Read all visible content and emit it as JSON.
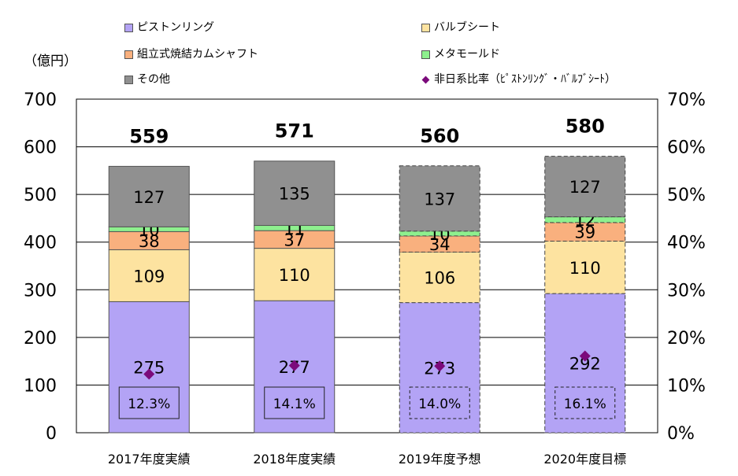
{
  "unit_label": "（億円）",
  "legend": [
    {
      "label": "ピストンリング",
      "color": "#b3a3f5",
      "marker": "square"
    },
    {
      "label": "バルブシート",
      "color": "#fde3a0",
      "marker": "square"
    },
    {
      "label": "組立式焼結カムシャフト",
      "color": "#f9b07e",
      "marker": "square"
    },
    {
      "label": "メタモールド",
      "color": "#8ef08e",
      "marker": "square"
    },
    {
      "label": "その他",
      "color": "#909090",
      "marker": "square"
    },
    {
      "label": "非日系比率（ﾋﾟｽﾄﾝﾘﾝｸﾞ・ﾊﾞﾙﾌﾞｼｰﾄ）",
      "color": "#7b0a7b",
      "marker": "diamond"
    }
  ],
  "chart_data": {
    "type": "bar",
    "stacked": true,
    "categories": [
      "2017年度実績",
      "2018年度実績",
      "2019年度予想",
      "2020年度目標"
    ],
    "series": [
      {
        "name": "ピストンリング",
        "values": [
          275,
          277,
          273,
          292
        ],
        "color": "#b3a3f5"
      },
      {
        "name": "バルブシート",
        "values": [
          109,
          110,
          106,
          110
        ],
        "color": "#fde3a0"
      },
      {
        "name": "組立式焼結カムシャフト",
        "values": [
          38,
          37,
          34,
          39
        ],
        "color": "#f9b07e"
      },
      {
        "name": "メタモールド",
        "values": [
          10,
          11,
          10,
          12
        ],
        "color": "#8ef08e"
      },
      {
        "name": "その他",
        "values": [
          127,
          135,
          137,
          127
        ],
        "color": "#909090"
      }
    ],
    "totals": [
      559,
      571,
      560,
      580
    ],
    "ratio_series": {
      "name": "非日系比率（ﾋﾟｽﾄﾝﾘﾝｸﾞ・ﾊﾞﾙﾌﾞｼｰﾄ）",
      "values": [
        12.3,
        14.1,
        14.0,
        16.1
      ],
      "labels": [
        "12.3%",
        "14.1%",
        "14.0%",
        "16.1%"
      ],
      "axis": "right",
      "color": "#7b0a7b"
    },
    "dashed_categories": [
      false,
      false,
      true,
      true
    ],
    "y_left": {
      "min": 0,
      "max": 700,
      "ticks": [
        0,
        100,
        200,
        300,
        400,
        500,
        600,
        700
      ]
    },
    "y_right": {
      "min": 0,
      "max": 70,
      "ticks": [
        "0%",
        "10%",
        "20%",
        "30%",
        "40%",
        "50%",
        "60%",
        "70%"
      ]
    },
    "grid": true,
    "legend_position": "top"
  }
}
